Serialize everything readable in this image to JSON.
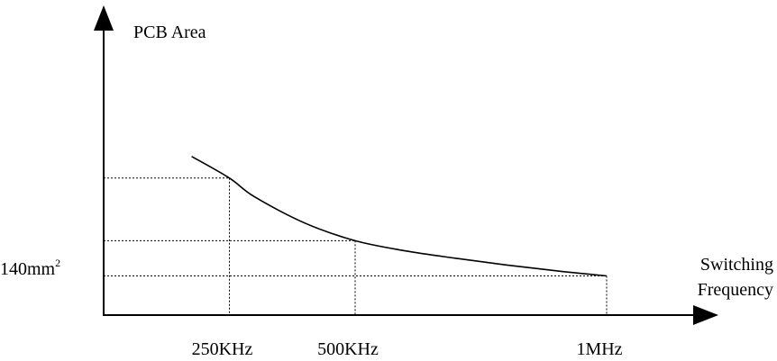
{
  "chart_data": {
    "type": "line",
    "ylabel": "PCB Area",
    "xlabel_lines": [
      "Switching",
      "Frequency"
    ],
    "y_tick_label": "140mm",
    "y_tick_superscript": "2",
    "x_ticks": [
      {
        "label": "250KHz",
        "x": 0.25
      },
      {
        "label": "500KHz",
        "x": 0.5
      },
      {
        "label": "1MHz",
        "x": 1.0
      }
    ],
    "series": [
      {
        "points": [
          {
            "x": 0.175,
            "y": 4.05
          },
          {
            "x": 0.25,
            "y": 3.5
          },
          {
            "x": 0.3,
            "y": 3.02
          },
          {
            "x": 0.4,
            "y": 2.35
          },
          {
            "x": 0.5,
            "y": 1.9
          },
          {
            "x": 0.6,
            "y": 1.64
          },
          {
            "x": 0.7,
            "y": 1.45
          },
          {
            "x": 0.8,
            "y": 1.28
          },
          {
            "x": 0.9,
            "y": 1.13
          },
          {
            "x": 1.0,
            "y": 1.0
          }
        ]
      }
    ],
    "guides": [
      {
        "x": 0.25,
        "y": 3.5
      },
      {
        "x": 0.5,
        "y": 1.9
      },
      {
        "x": 1.0,
        "y": 1.0
      }
    ],
    "x_range": [
      0,
      1.0
    ],
    "y_range": [
      0,
      3.5
    ],
    "grid": false,
    "line_style": "solid",
    "guide_style": "dotted"
  }
}
